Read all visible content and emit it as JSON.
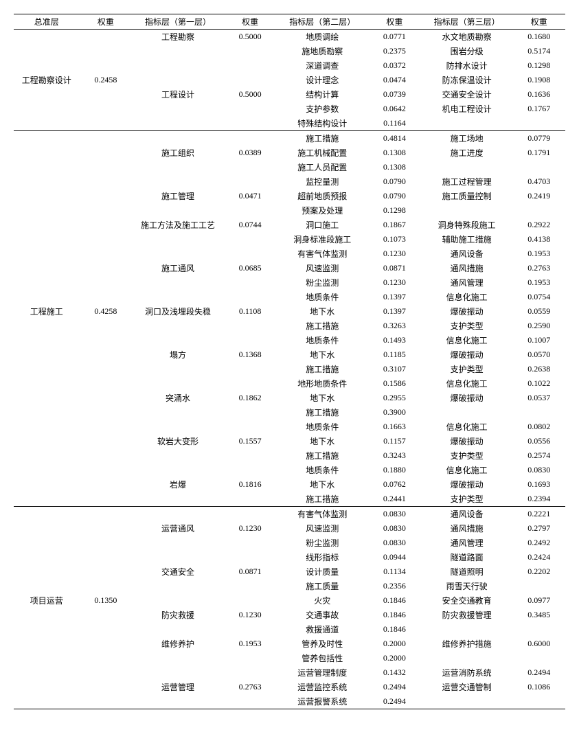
{
  "headers": {
    "h1": "总准层",
    "h2": "权重",
    "h3": "指标层（第一层）",
    "h4": "权重",
    "h5": "指标层（第二层）",
    "h6": "权重",
    "h7": "指标层（第三层）",
    "h8": "权重"
  },
  "rows": [
    {
      "sep": 0,
      "c1": "",
      "c2": "",
      "c3": "工程勘察",
      "c4": "0.5000",
      "c5": "地质调绘",
      "c6": "0.0771",
      "c7": "水文地质勘察",
      "c8": "0.1680"
    },
    {
      "c1": "",
      "c2": "",
      "c3": "",
      "c4": "",
      "c5": "施地质勘察",
      "c6": "0.2375",
      "c7": "围岩分级",
      "c8": "0.5174"
    },
    {
      "c1": "",
      "c2": "",
      "c3": "",
      "c4": "",
      "c5": "深道调查",
      "c6": "0.0372",
      "c7": "防排水设计",
      "c8": "0.1298"
    },
    {
      "c1": "工程勘察设计",
      "c2": "0.2458",
      "c3": "",
      "c4": "",
      "c5": "设计理念",
      "c6": "0.0474",
      "c7": "防冻保温设计",
      "c8": "0.1908"
    },
    {
      "c1": "",
      "c2": "",
      "c3": "工程设计",
      "c4": "0.5000",
      "c5": "结构计算",
      "c6": "0.0739",
      "c7": "交通安全设计",
      "c8": "0.1636"
    },
    {
      "c1": "",
      "c2": "",
      "c3": "",
      "c4": "",
      "c5": "支护参数",
      "c6": "0.0642",
      "c7": "机电工程设计",
      "c8": "0.1767"
    },
    {
      "c1": "",
      "c2": "",
      "c3": "",
      "c4": "",
      "c5": "特殊结构设计",
      "c6": "0.1164",
      "c7": "",
      "c8": ""
    },
    {
      "sep": 1,
      "c1": "",
      "c2": "",
      "c3": "",
      "c4": "",
      "c5": "施工措施",
      "c6": "0.4814",
      "c7": "施工场地",
      "c8": "0.0779"
    },
    {
      "c1": "",
      "c2": "",
      "c3": "施工组织",
      "c4": "0.0389",
      "c5": "施工机械配置",
      "c6": "0.1308",
      "c7": "施工进度",
      "c8": "0.1791"
    },
    {
      "c1": "",
      "c2": "",
      "c3": "",
      "c4": "",
      "c5": "施工人员配置",
      "c6": "0.1308",
      "c7": "",
      "c8": ""
    },
    {
      "c1": "",
      "c2": "",
      "c3": "",
      "c4": "",
      "c5": "监控量测",
      "c6": "0.0790",
      "c7": "施工过程管理",
      "c8": "0.4703"
    },
    {
      "c1": "",
      "c2": "",
      "c3": "施工管理",
      "c4": "0.0471",
      "c5": "超前地质预报",
      "c6": "0.0790",
      "c7": "施工质量控制",
      "c8": "0.2419"
    },
    {
      "c1": "",
      "c2": "",
      "c3": "",
      "c4": "",
      "c5": "预案及处理",
      "c6": "0.1298",
      "c7": "",
      "c8": ""
    },
    {
      "c1": "",
      "c2": "",
      "c3": "施工方法及施工工艺",
      "c4": "0.0744",
      "c5": "洞口施工",
      "c6": "0.1867",
      "c7": "洞身特殊段施工",
      "c8": "0.2922"
    },
    {
      "c1": "",
      "c2": "",
      "c3": "",
      "c4": "",
      "c5": "洞身标准段施工",
      "c6": "0.1073",
      "c7": "辅助施工措施",
      "c8": "0.4138"
    },
    {
      "c1": "",
      "c2": "",
      "c3": "",
      "c4": "",
      "c5": "有害气体监测",
      "c6": "0.1230",
      "c7": "通风设备",
      "c8": "0.1953"
    },
    {
      "c1": "",
      "c2": "",
      "c3": "施工通风",
      "c4": "0.0685",
      "c5": "风速监测",
      "c6": "0.0871",
      "c7": "通风措施",
      "c8": "0.2763"
    },
    {
      "c1": "",
      "c2": "",
      "c3": "",
      "c4": "",
      "c5": "粉尘监测",
      "c6": "0.1230",
      "c7": "通风管理",
      "c8": "0.1953"
    },
    {
      "c1": "",
      "c2": "",
      "c3": "",
      "c4": "",
      "c5": "地质条件",
      "c6": "0.1397",
      "c7": "信息化施工",
      "c8": "0.0754"
    },
    {
      "c1": "工程施工",
      "c2": "0.4258",
      "c3": "洞口及浅埋段失稳",
      "c4": "0.1108",
      "c5": "地下水",
      "c6": "0.1397",
      "c7": "爆破振动",
      "c8": "0.0559"
    },
    {
      "c1": "",
      "c2": "",
      "c3": "",
      "c4": "",
      "c5": "施工措施",
      "c6": "0.3263",
      "c7": "支护类型",
      "c8": "0.2590"
    },
    {
      "c1": "",
      "c2": "",
      "c3": "",
      "c4": "",
      "c5": "地质条件",
      "c6": "0.1493",
      "c7": "信息化施工",
      "c8": "0.1007"
    },
    {
      "c1": "",
      "c2": "",
      "c3": "塌方",
      "c4": "0.1368",
      "c5": "地下水",
      "c6": "0.1185",
      "c7": "爆破振动",
      "c8": "0.0570"
    },
    {
      "c1": "",
      "c2": "",
      "c3": "",
      "c4": "",
      "c5": "施工措施",
      "c6": "0.3107",
      "c7": "支护类型",
      "c8": "0.2638"
    },
    {
      "c1": "",
      "c2": "",
      "c3": "",
      "c4": "",
      "c5": "地形地质条件",
      "c6": "0.1586",
      "c7": "信息化施工",
      "c8": "0.1022"
    },
    {
      "c1": "",
      "c2": "",
      "c3": "突涌水",
      "c4": "0.1862",
      "c5": "地下水",
      "c6": "0.2955",
      "c7": "爆破振动",
      "c8": "0.0537"
    },
    {
      "c1": "",
      "c2": "",
      "c3": "",
      "c4": "",
      "c5": "施工措施",
      "c6": "0.3900",
      "c7": "",
      "c8": ""
    },
    {
      "c1": "",
      "c2": "",
      "c3": "",
      "c4": "",
      "c5": "地质条件",
      "c6": "0.1663",
      "c7": "信息化施工",
      "c8": "0.0802"
    },
    {
      "c1": "",
      "c2": "",
      "c3": "软岩大变形",
      "c4": "0.1557",
      "c5": "地下水",
      "c6": "0.1157",
      "c7": "爆破振动",
      "c8": "0.0556"
    },
    {
      "c1": "",
      "c2": "",
      "c3": "",
      "c4": "",
      "c5": "施工措施",
      "c6": "0.3243",
      "c7": "支护类型",
      "c8": "0.2574"
    },
    {
      "c1": "",
      "c2": "",
      "c3": "",
      "c4": "",
      "c5": "地质条件",
      "c6": "0.1880",
      "c7": "信息化施工",
      "c8": "0.0830"
    },
    {
      "c1": "",
      "c2": "",
      "c3": "岩爆",
      "c4": "0.1816",
      "c5": "地下水",
      "c6": "0.0762",
      "c7": "爆破振动",
      "c8": "0.1693"
    },
    {
      "c1": "",
      "c2": "",
      "c3": "",
      "c4": "",
      "c5": "施工措施",
      "c6": "0.2441",
      "c7": "支护类型",
      "c8": "0.2394"
    },
    {
      "sep": 1,
      "c1": "",
      "c2": "",
      "c3": "",
      "c4": "",
      "c5": "有害气体监测",
      "c6": "0.0830",
      "c7": "通风设备",
      "c8": "0.2221"
    },
    {
      "c1": "",
      "c2": "",
      "c3": "运营通风",
      "c4": "0.1230",
      "c5": "风速监测",
      "c6": "0.0830",
      "c7": "通风措施",
      "c8": "0.2797"
    },
    {
      "c1": "",
      "c2": "",
      "c3": "",
      "c4": "",
      "c5": "粉尘监测",
      "c6": "0.0830",
      "c7": "通风管理",
      "c8": "0.2492"
    },
    {
      "c1": "",
      "c2": "",
      "c3": "",
      "c4": "",
      "c5": "线形指标",
      "c6": "0.0944",
      "c7": "隧道路面",
      "c8": "0.2424"
    },
    {
      "c1": "",
      "c2": "",
      "c3": "交通安全",
      "c4": "0.0871",
      "c5": "设计质量",
      "c6": "0.1134",
      "c7": "隧道照明",
      "c8": "0.2202"
    },
    {
      "c1": "",
      "c2": "",
      "c3": "",
      "c4": "",
      "c5": "施工质量",
      "c6": "0.2356",
      "c7": "雨雪天行驶",
      "c8": ""
    },
    {
      "c1": "项目运营",
      "c2": "0.1350",
      "c3": "",
      "c4": "",
      "c5": "火灾",
      "c6": "0.1846",
      "c7": "安全交通教育",
      "c8": "0.0977"
    },
    {
      "c1": "",
      "c2": "",
      "c3": "防灾救援",
      "c4": "0.1230",
      "c5": "交通事故",
      "c6": "0.1846",
      "c7": "防灾救援管理",
      "c8": "0.3485"
    },
    {
      "c1": "",
      "c2": "",
      "c3": "",
      "c4": "",
      "c5": "救援通道",
      "c6": "0.1846",
      "c7": "",
      "c8": ""
    },
    {
      "c1": "",
      "c2": "",
      "c3": "维修养护",
      "c4": "0.1953",
      "c5": "管养及时性",
      "c6": "0.2000",
      "c7": "维修养护措施",
      "c8": "0.6000"
    },
    {
      "c1": "",
      "c2": "",
      "c3": "",
      "c4": "",
      "c5": "管养包括性",
      "c6": "0.2000",
      "c7": "",
      "c8": ""
    },
    {
      "c1": "",
      "c2": "",
      "c3": "",
      "c4": "",
      "c5": "运营管理制度",
      "c6": "0.1432",
      "c7": "运营消防系统",
      "c8": "0.2494"
    },
    {
      "c1": "",
      "c2": "",
      "c3": "运营管理",
      "c4": "0.2763",
      "c5": "运营监控系统",
      "c6": "0.2494",
      "c7": "运营交通管制",
      "c8": "0.1086"
    },
    {
      "last": 1,
      "c1": "",
      "c2": "",
      "c3": "",
      "c4": "",
      "c5": "运营报警系统",
      "c6": "0.2494",
      "c7": "",
      "c8": ""
    }
  ]
}
